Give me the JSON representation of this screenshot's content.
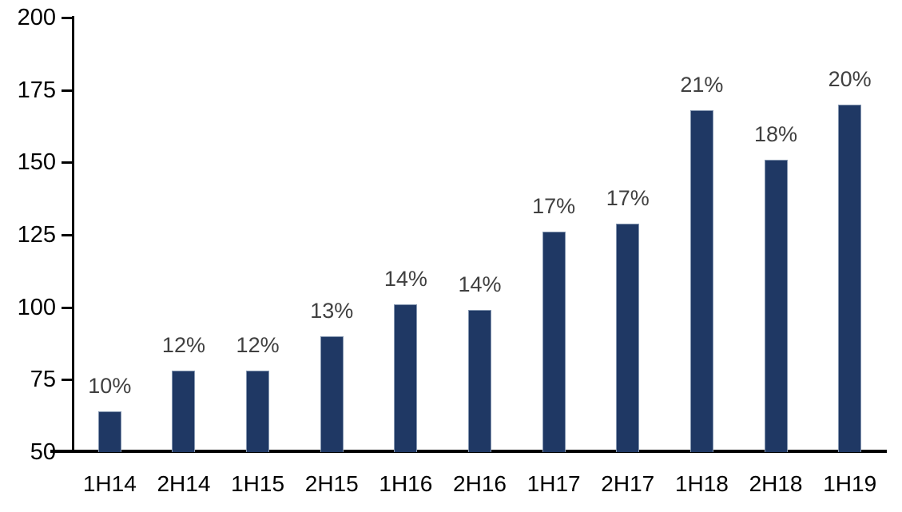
{
  "chart_data": {
    "type": "bar",
    "title": "",
    "xlabel": "",
    "ylabel": "",
    "categories": [
      "1H14",
      "2H14",
      "1H15",
      "2H15",
      "1H16",
      "2H16",
      "1H17",
      "2H17",
      "1H18",
      "2H18",
      "1H19"
    ],
    "values": [
      64,
      78,
      78,
      90,
      101,
      99,
      126,
      129,
      168,
      151,
      170
    ],
    "bar_labels": [
      "10%",
      "12%",
      "12%",
      "13%",
      "14%",
      "14%",
      "17%",
      "17%",
      "21%",
      "18%",
      "20%"
    ],
    "ylim": [
      50,
      200
    ],
    "yticks": [
      "50",
      "75",
      "100",
      "125",
      "150",
      "175",
      "200"
    ],
    "grid": false,
    "legend": "none",
    "colors": {
      "bar_fill": "#1F3864",
      "bar_border": "#8496B0",
      "data_label": "#404040",
      "axis": "#000000"
    }
  }
}
